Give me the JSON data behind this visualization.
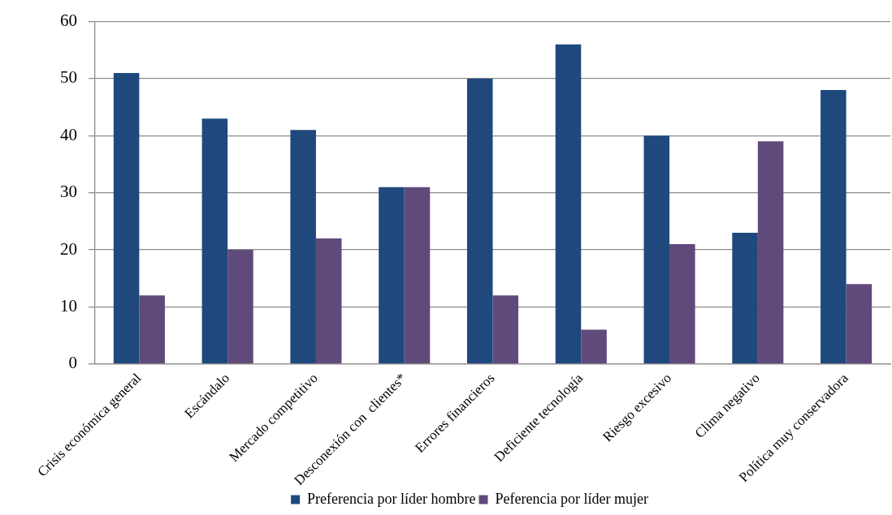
{
  "chart_data": {
    "type": "bar",
    "categories": [
      "Crisis económica general",
      "Escándalo",
      "Mercado competitivo",
      "Desconexión con  clientes*",
      "Errores financieros",
      "Deficiente tecnología",
      "Riesgo excesivo",
      "Clima negativo",
      "Política muy conservadora"
    ],
    "series": [
      {
        "name": "Preferencia por líder hombre",
        "color": "#1f497d",
        "values": [
          51,
          43,
          41,
          31,
          50,
          56,
          40,
          23,
          48
        ]
      },
      {
        "name": "Peferencia por líder mujer",
        "color": "#604a7b",
        "values": [
          12,
          20,
          22,
          31,
          12,
          6,
          21,
          39,
          14
        ]
      }
    ],
    "ylim": [
      0,
      60
    ],
    "yticks": [
      0,
      10,
      20,
      30,
      40,
      50,
      60
    ],
    "grid": "y",
    "legend": "bottom"
  }
}
